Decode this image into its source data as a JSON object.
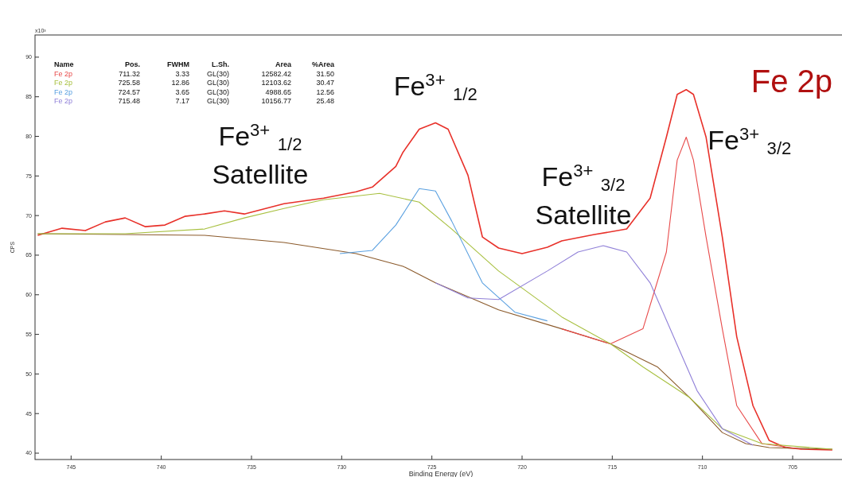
{
  "chart_data": {
    "type": "line",
    "title": "Fe 2p",
    "xlabel": "Binding Energy (eV)",
    "ylabel": "CPS",
    "xlim": [
      747,
      702
    ],
    "xticks": [
      745,
      740,
      735,
      730,
      725,
      720,
      715,
      710,
      705
    ],
    "ylim": [
      39.2,
      92.8
    ],
    "yticks": [
      40,
      45,
      50,
      55,
      60,
      65,
      70,
      75,
      80,
      85,
      90
    ],
    "grid": false,
    "marker": "none",
    "line_style": "solid",
    "series": [
      {
        "color": "#e8312a",
        "x": [
          746.85,
          745.5,
          744.21,
          743.1,
          742.0,
          740.9,
          739.8,
          738.7,
          737.6,
          736.5,
          735.4,
          733.2,
          731.0,
          729.2,
          728.3,
          727.0,
          726.6,
          725.7,
          724.8,
          724.1,
          723.0,
          722.2,
          721.3,
          720.0,
          718.6,
          717.8,
          716.0,
          714.2,
          712.9,
          712.0,
          711.4,
          710.9,
          710.5,
          709.8,
          708.9,
          708.1,
          707.2,
          706.3,
          705.4,
          704.5,
          702.8
        ],
        "values": [
          67.5,
          68.4,
          68.1,
          69.2,
          69.7,
          68.6,
          68.8,
          69.9,
          70.2,
          70.6,
          70.2,
          71.5,
          72.2,
          73.0,
          73.6,
          76.2,
          78.0,
          80.9,
          81.7,
          80.9,
          75.1,
          67.3,
          65.9,
          65.2,
          66.0,
          66.8,
          67.6,
          68.3,
          72.2,
          79.9,
          85.3,
          85.9,
          85.3,
          79.9,
          67.3,
          54.7,
          46.0,
          41.6,
          40.7,
          40.5,
          40.4
        ]
      },
      {
        "color": "#8b5a2b",
        "x": [
          746.85,
          742.0,
          737.6,
          733.2,
          729.2,
          726.6,
          724.8,
          721.3,
          717.8,
          715.1,
          712.5,
          710.7,
          708.9,
          707.6,
          706.3,
          702.8
        ],
        "values": [
          67.7,
          67.6,
          67.5,
          66.6,
          65.2,
          63.6,
          61.5,
          58.1,
          55.7,
          53.8,
          50.9,
          47.0,
          42.6,
          41.2,
          40.7,
          40.5
        ]
      },
      {
        "color": "#e84a4a",
        "x": [
          717.8,
          715.1,
          713.3,
          712.0,
          711.4,
          710.9,
          710.5,
          709.8,
          708.9,
          708.1,
          706.7,
          704.5
        ],
        "values": [
          55.7,
          53.8,
          55.7,
          65.4,
          77.0,
          79.9,
          77.0,
          67.3,
          55.7,
          46.0,
          41.2,
          40.5
        ]
      },
      {
        "color": "#a8c040",
        "x": [
          746.85,
          742.0,
          737.6,
          735.4,
          733.2,
          731.0,
          727.9,
          725.7,
          723.9,
          721.3,
          717.8,
          715.1,
          713.3,
          710.7,
          708.9,
          706.7,
          702.8
        ],
        "values": [
          67.7,
          67.7,
          68.3,
          69.7,
          70.9,
          72.0,
          72.8,
          71.7,
          68.3,
          63.0,
          57.2,
          53.8,
          50.9,
          47.0,
          43.1,
          41.2,
          40.5
        ]
      },
      {
        "color": "#5aa0e0",
        "x": [
          730.1,
          728.3,
          727.0,
          725.7,
          724.8,
          723.9,
          722.2,
          720.4,
          718.6
        ],
        "values": [
          65.2,
          65.6,
          68.8,
          73.4,
          73.1,
          69.3,
          61.5,
          57.8,
          56.7
        ]
      },
      {
        "color": "#9080d8",
        "x": [
          724.8,
          723.0,
          721.3,
          718.6,
          716.9,
          715.5,
          714.2,
          712.9,
          711.6,
          710.3,
          708.9,
          707.2
        ],
        "values": [
          61.5,
          59.6,
          59.4,
          63.0,
          65.4,
          66.2,
          65.4,
          61.5,
          54.7,
          47.9,
          43.1,
          41.0
        ]
      }
    ],
    "annotations": [
      {
        "text": "Fe$^{3+}$ $_{1/2}$ Satellite",
        "x": 727.9,
        "y": 72.8
      },
      {
        "text": "Fe$^{3+}$ $_{1/2}$",
        "x": 724.8,
        "y": 81.7
      },
      {
        "text": "Fe$^{3+}$ $_{3/2}$ Satellite",
        "x": 715.5,
        "y": 66.2
      },
      {
        "text": "Fe$^{3+}$ $_{3/2}$",
        "x": 710.9,
        "y": 85.9
      },
      "x10³",
      "Name\tPos.\tFWHM\tL.Sh.\tArea\t%Area",
      "Fe 2p\t711.32\t3.33\tGL(30)\t12582.42\t31.50",
      "Fe 2p\t725.58\t12.86\tGL(30)\t12103.62\t30.47",
      "Fe 2p\t724.57\t3.65\tGL(30)\t4988.65\t12.56",
      "Fe 2p\t715.48\t7.17\tGL(30)\t10156.77\t25.48"
    ]
  }
}
